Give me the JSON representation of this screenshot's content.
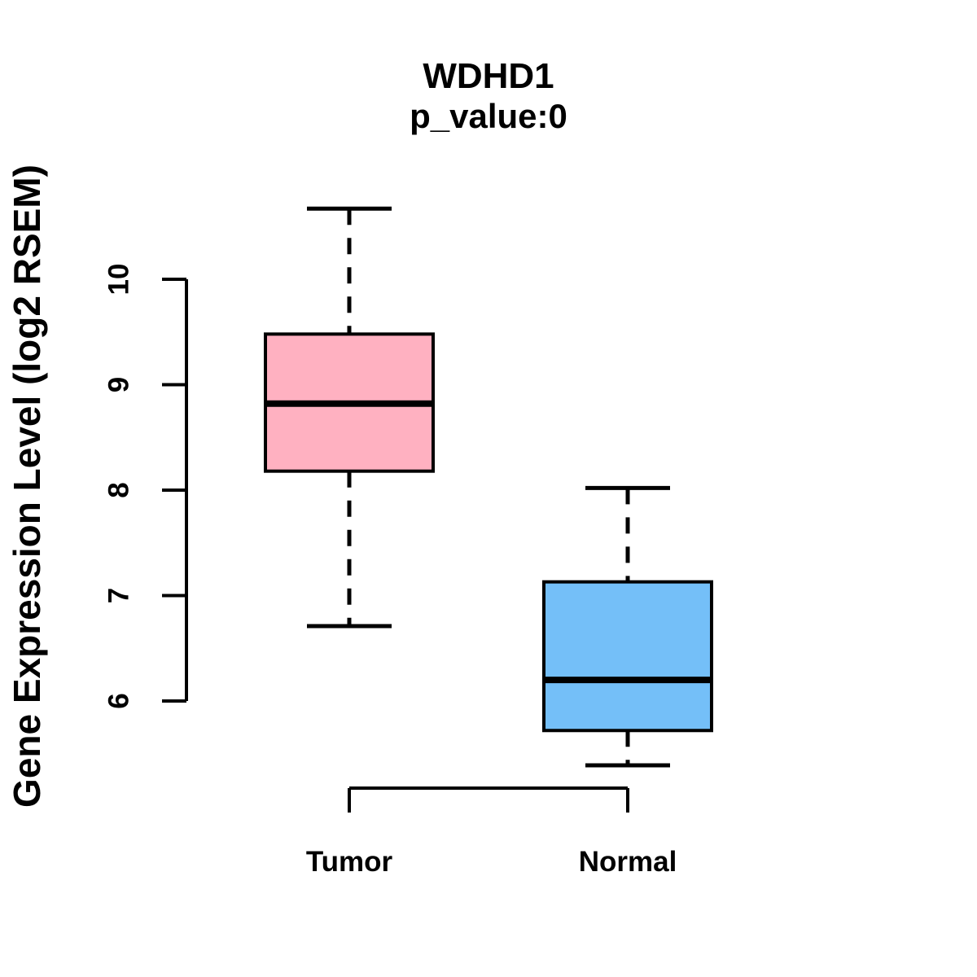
{
  "chart_data": {
    "type": "boxplot",
    "title": "WDHD1",
    "subtitle": "p_value:0",
    "ylabel": "Gene Expression Level (log2 RSEM)",
    "yticks": [
      6,
      7,
      8,
      9,
      10
    ],
    "ylim": [
      5.2,
      10.8
    ],
    "grid": false,
    "categories": [
      "Tumor",
      "Normal"
    ],
    "groups": [
      {
        "label": "Tumor",
        "fill_color": "#FFB1C1",
        "whisker_low": 6.71,
        "q1": 8.18,
        "median": 8.82,
        "q3": 9.48,
        "whisker_high": 10.67,
        "outliers": []
      },
      {
        "label": "Normal",
        "fill_color": "#74BFF8",
        "whisker_low": 5.39,
        "q1": 5.72,
        "median": 6.2,
        "q3": 7.13,
        "whisker_high": 8.02,
        "outliers": []
      }
    ],
    "stroke_color": "#000000",
    "background_color": "#FFFFFF"
  }
}
